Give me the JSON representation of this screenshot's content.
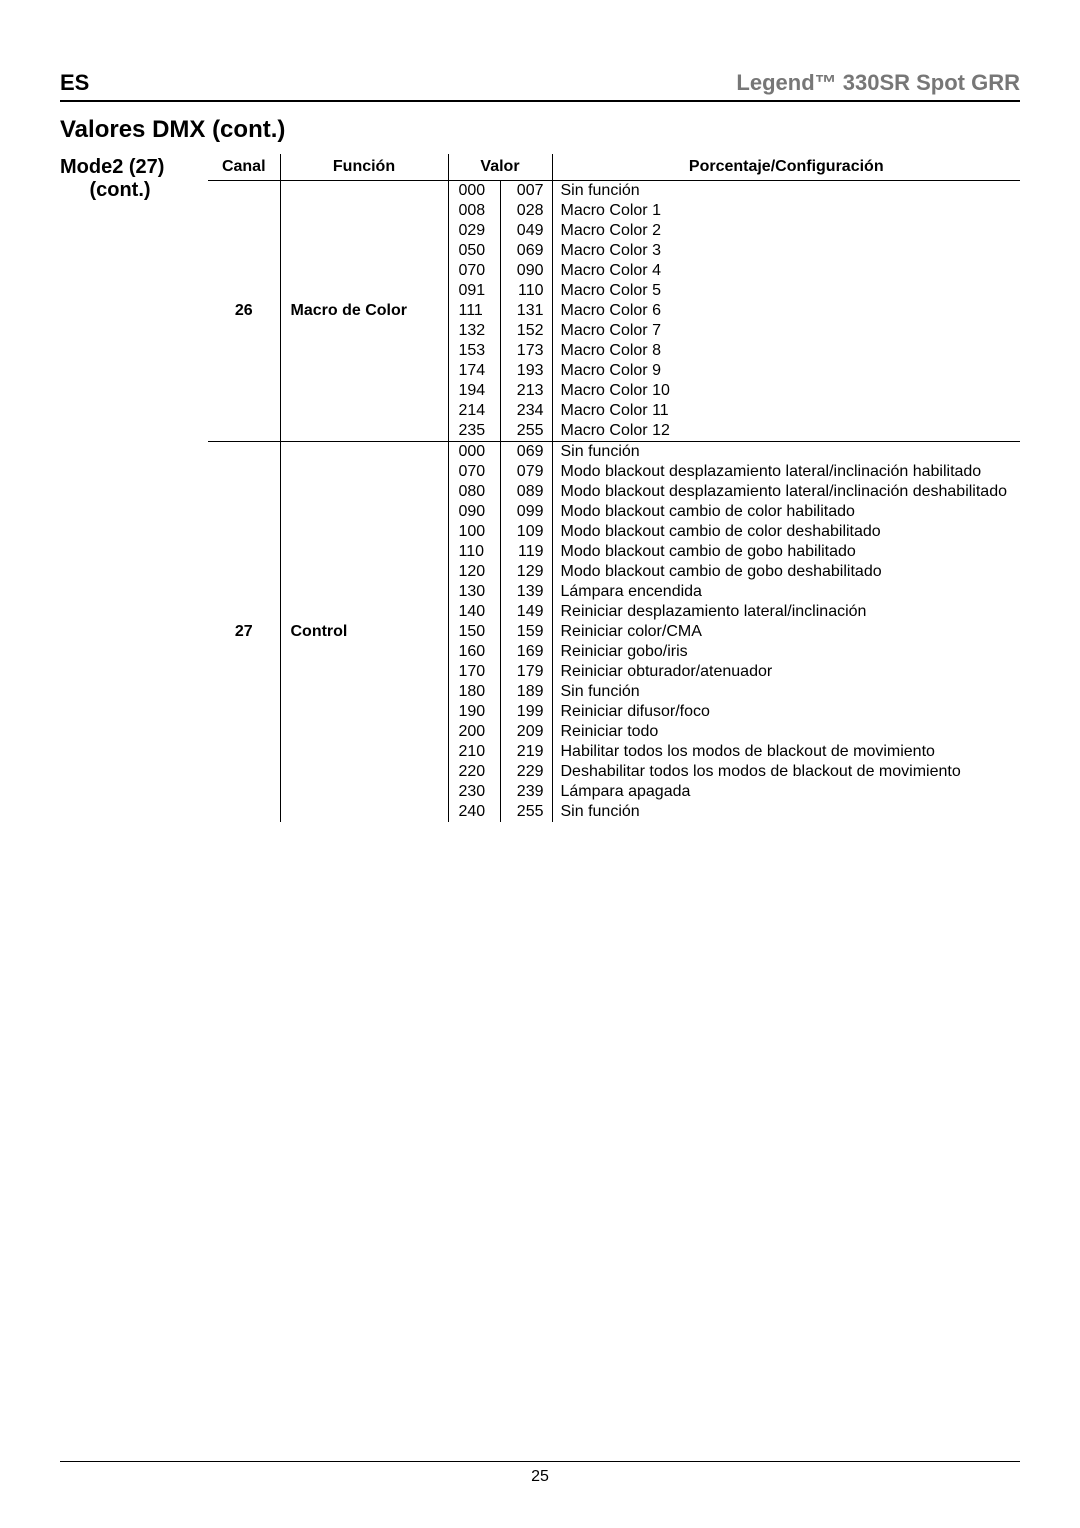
{
  "header": {
    "left": "ES",
    "right": "Legend™ 330SR Spot GRR"
  },
  "section_title": "Valores DMX (cont.)",
  "mode_label": {
    "line1": "Mode2 (27)",
    "line2": "(cont.)"
  },
  "columns": {
    "canal": "Canal",
    "funcion": "Función",
    "valor": "Valor",
    "config": "Porcentaje/Configuración"
  },
  "groups": [
    {
      "canal": "26",
      "funcion": "Macro de Color",
      "rows": [
        {
          "from": "000",
          "to": "007",
          "desc": "Sin función"
        },
        {
          "from": "008",
          "to": "028",
          "desc": "Macro Color 1"
        },
        {
          "from": "029",
          "to": "049",
          "desc": "Macro Color 2"
        },
        {
          "from": "050",
          "to": "069",
          "desc": "Macro Color 3"
        },
        {
          "from": "070",
          "to": "090",
          "desc": "Macro Color 4"
        },
        {
          "from": "091",
          "to": "110",
          "desc": "Macro Color 5"
        },
        {
          "from": "111",
          "to": "131",
          "desc": "Macro Color 6"
        },
        {
          "from": "132",
          "to": "152",
          "desc": "Macro Color 7"
        },
        {
          "from": "153",
          "to": "173",
          "desc": "Macro Color 8"
        },
        {
          "from": "174",
          "to": "193",
          "desc": "Macro Color 9"
        },
        {
          "from": "194",
          "to": "213",
          "desc": "Macro Color 10"
        },
        {
          "from": "214",
          "to": "234",
          "desc": "Macro Color 11"
        },
        {
          "from": "235",
          "to": "255",
          "desc": "Macro Color 12"
        }
      ]
    },
    {
      "canal": "27",
      "funcion": "Control",
      "rows": [
        {
          "from": "000",
          "to": "069",
          "desc": "Sin función"
        },
        {
          "from": "070",
          "to": "079",
          "desc": "Modo blackout desplazamiento lateral/inclinación habilitado"
        },
        {
          "from": "080",
          "to": "089",
          "desc": "Modo blackout desplazamiento lateral/inclinación deshabilitado"
        },
        {
          "from": "090",
          "to": "099",
          "desc": "Modo blackout cambio de color habilitado"
        },
        {
          "from": "100",
          "to": "109",
          "desc": "Modo blackout cambio de color deshabilitado"
        },
        {
          "from": "110",
          "to": "119",
          "desc": "Modo blackout cambio de gobo habilitado"
        },
        {
          "from": "120",
          "to": "129",
          "desc": "Modo blackout cambio de gobo deshabilitado"
        },
        {
          "from": "130",
          "to": "139",
          "desc": "Lámpara encendida"
        },
        {
          "from": "140",
          "to": "149",
          "desc": "Reiniciar desplazamiento lateral/inclinación"
        },
        {
          "from": "150",
          "to": "159",
          "desc": "Reiniciar color/CMA"
        },
        {
          "from": "160",
          "to": "169",
          "desc": "Reiniciar gobo/iris"
        },
        {
          "from": "170",
          "to": "179",
          "desc": "Reiniciar obturador/atenuador"
        },
        {
          "from": "180",
          "to": "189",
          "desc": "Sin función"
        },
        {
          "from": "190",
          "to": "199",
          "desc": "Reiniciar difusor/foco"
        },
        {
          "from": "200",
          "to": "209",
          "desc": "Reiniciar todo"
        },
        {
          "from": "210",
          "to": "219",
          "desc": "Habilitar todos los modos de blackout de movimiento"
        },
        {
          "from": "220",
          "to": "229",
          "desc": "Deshabilitar todos los modos de blackout de movimiento"
        },
        {
          "from": "230",
          "to": "239",
          "desc": "Lámpara apagada"
        },
        {
          "from": "240",
          "to": "255",
          "desc": "Sin función"
        }
      ]
    }
  ],
  "page_number": "25"
}
